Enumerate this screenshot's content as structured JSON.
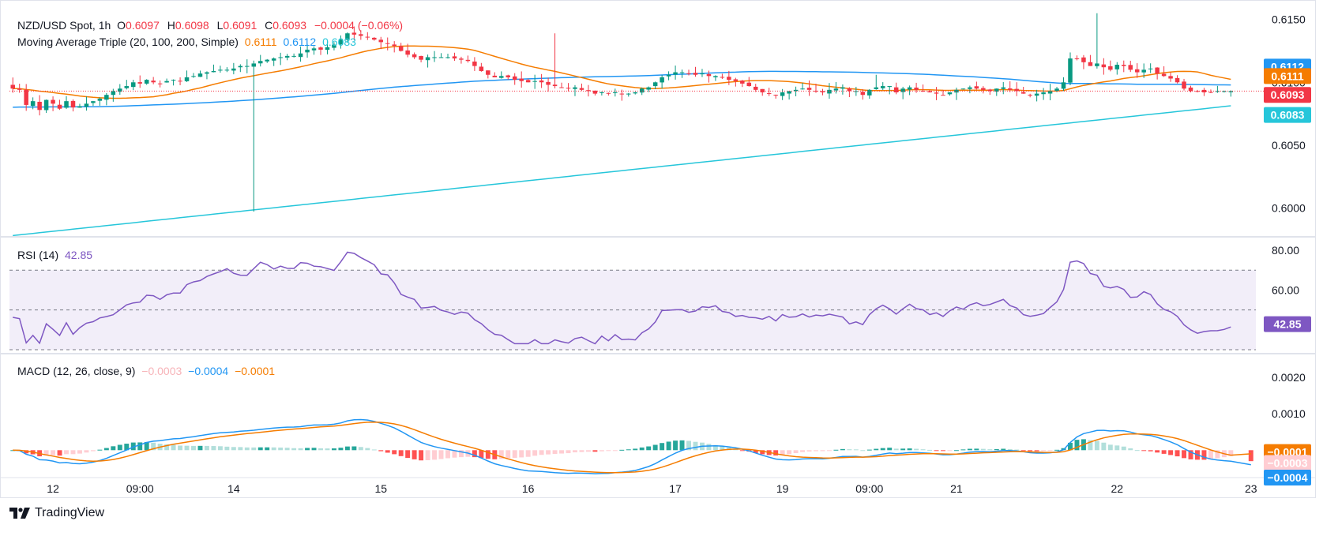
{
  "header": {
    "symbol": "NZD/USD Spot, 1h",
    "open_label": "O",
    "open": "0.6097",
    "high_label": "H",
    "high": "0.6098",
    "low_label": "L",
    "low": "0.6091",
    "close_label": "C",
    "close": "0.6093",
    "change": "−0.0004 (−0.06%)"
  },
  "ma_legend": {
    "title": "Moving Average Triple (20, 100, 200, Simple)",
    "ma20": "0.6111",
    "ma100": "0.6112",
    "ma200": "0.6083"
  },
  "rsi_legend": {
    "title": "RSI (14)",
    "value": "42.85"
  },
  "macd_legend": {
    "title": "MACD (12, 26, close, 9)",
    "histogram": "−0.0003",
    "macd": "−0.0004",
    "signal": "−0.0001"
  },
  "brand": "TradingView",
  "colors": {
    "up": "#089981",
    "down": "#f23645",
    "ma20": "#f57c00",
    "ma100": "#2196f3",
    "ma200": "#26c6da",
    "rsi": "#7e57c2",
    "hist_up_strong": "#26a69a",
    "hist_up_weak": "#b2dfdb",
    "hist_down_strong": "#ff5252",
    "hist_down_weak": "#ffcdd2"
  },
  "chart_data": {
    "type": "candlestick",
    "timeframe": "1h",
    "x_tick_labels": [
      {
        "label": "12",
        "bar": 6
      },
      {
        "label": "09:00",
        "bar": 19
      },
      {
        "label": "14",
        "bar": 33
      },
      {
        "label": "15",
        "bar": 55
      },
      {
        "label": "16",
        "bar": 77
      },
      {
        "label": "17",
        "bar": 99
      },
      {
        "label": "19",
        "bar": 115
      },
      {
        "label": "09:00",
        "bar": 128
      },
      {
        "label": "21",
        "bar": 141
      },
      {
        "label": "22",
        "bar": 165
      },
      {
        "label": "23",
        "bar": 185
      }
    ],
    "bar_count": 186,
    "price_panel": {
      "ylim": [
        0.5977,
        0.6158
      ],
      "y_ticks": [
        "0.6150",
        "0.6100",
        "0.6050",
        "0.6000"
      ],
      "closes": [
        0.6095,
        0.6094,
        0.6082,
        0.6085,
        0.6078,
        0.6086,
        0.6083,
        0.6079,
        0.6085,
        0.608,
        0.6081,
        0.6083,
        0.6085,
        0.6087,
        0.609,
        0.6093,
        0.6095,
        0.6097,
        0.61,
        0.6099,
        0.6102,
        0.61,
        0.6099,
        0.6101,
        0.6102,
        0.6101,
        0.6104,
        0.6105,
        0.6107,
        0.6108,
        0.6109,
        0.611,
        0.611,
        0.6111,
        0.6113,
        0.6113,
        0.6115,
        0.6117,
        0.6118,
        0.6119,
        0.612,
        0.6121,
        0.6121,
        0.6123,
        0.6126,
        0.6127,
        0.6126,
        0.6128,
        0.613,
        0.6134,
        0.6139,
        0.6138,
        0.6137,
        0.6136,
        0.6134,
        0.6132,
        0.6131,
        0.6129,
        0.6125,
        0.6122,
        0.612,
        0.6118,
        0.612,
        0.612,
        0.612,
        0.612,
        0.6119,
        0.6118,
        0.6117,
        0.6113,
        0.6109,
        0.6106,
        0.6104,
        0.6105,
        0.6104,
        0.6102,
        0.6101,
        0.61,
        0.6101,
        0.61,
        0.6098,
        0.6097,
        0.6096,
        0.6095,
        0.6096,
        0.6094,
        0.6093,
        0.6091,
        0.6092,
        0.6091,
        0.6092,
        0.6091,
        0.6091,
        0.6092,
        0.6095,
        0.6096,
        0.61,
        0.6104,
        0.6106,
        0.6108,
        0.6108,
        0.6107,
        0.6106,
        0.6107,
        0.6105,
        0.6105,
        0.6104,
        0.6102,
        0.6101,
        0.6099,
        0.6097,
        0.6094,
        0.6092,
        0.6091,
        0.609,
        0.6092,
        0.6093,
        0.6094,
        0.6095,
        0.6094,
        0.6093,
        0.6092,
        0.6094,
        0.6095,
        0.6096,
        0.6093,
        0.6093,
        0.609,
        0.6094,
        0.6096,
        0.6097,
        0.6097,
        0.6092,
        0.6095,
        0.6096,
        0.6094,
        0.6093,
        0.6092,
        0.6091,
        0.609,
        0.6092,
        0.6094,
        0.6095,
        0.6096,
        0.6095,
        0.6094,
        0.6093,
        0.6095,
        0.6096,
        0.6094,
        0.6093,
        0.6091,
        0.609,
        0.6091,
        0.6092,
        0.6093,
        0.6095,
        0.61,
        0.6119,
        0.6119,
        0.6116,
        0.6113,
        0.6115,
        0.6112,
        0.611,
        0.6114,
        0.6113,
        0.611,
        0.6108,
        0.611,
        0.6111,
        0.6107,
        0.6105,
        0.6103,
        0.61,
        0.6095,
        0.6093,
        0.6093,
        0.6092,
        0.6092,
        0.6093,
        0.6093,
        0.6093
      ],
      "ma20_label": "0.6111",
      "ma100_label": "0.6112",
      "ma200_label": "0.6083",
      "last_price_label": "0.6093",
      "last_price": 0.6093,
      "ma20_last": 0.6111,
      "ma100_last": 0.6112,
      "ma200_last": 0.6083
    },
    "rsi_panel": {
      "ylim": [
        28,
        86
      ],
      "y_ticks": [
        "80.00",
        "60.00"
      ],
      "overbought": 70,
      "oversold": 30,
      "midline": 50,
      "current": 42.85
    },
    "macd_panel": {
      "ylim": [
        -0.00075,
        0.0026
      ],
      "y_ticks": [
        "0.0020",
        "0.0010"
      ],
      "histogram_last": -0.0003,
      "macd_last": -0.0004,
      "signal_last": -0.0001
    }
  }
}
